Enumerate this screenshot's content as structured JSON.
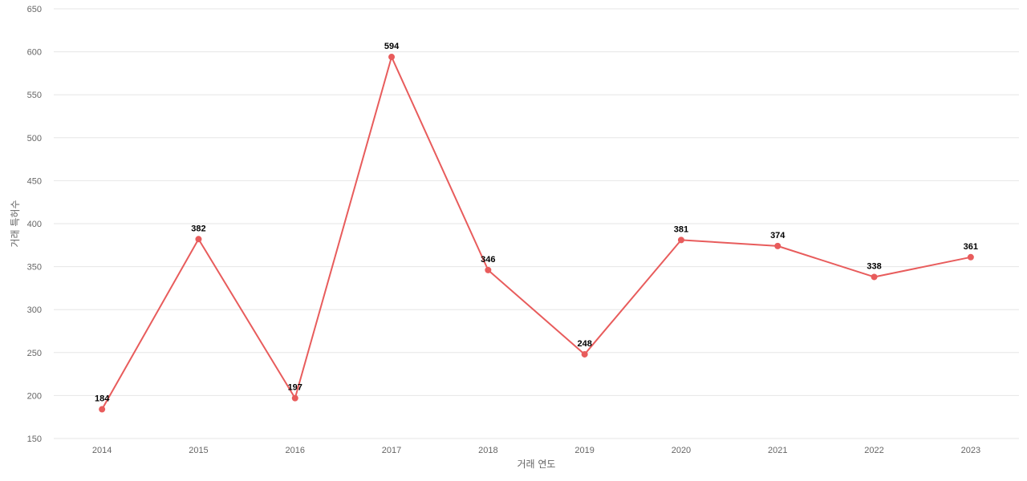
{
  "chart_data": {
    "type": "line",
    "title": "",
    "xlabel": "거래 연도",
    "ylabel": "거래 특허수",
    "categories": [
      "2014",
      "2015",
      "2016",
      "2017",
      "2018",
      "2019",
      "2020",
      "2021",
      "2022",
      "2023"
    ],
    "series": [
      {
        "values": [
          184,
          382,
          197,
          594,
          346,
          248,
          381,
          374,
          338,
          361
        ]
      }
    ],
    "ylim": [
      150,
      650
    ],
    "yticks": [
      150,
      200,
      250,
      300,
      350,
      400,
      450,
      500,
      550,
      600,
      650
    ],
    "grid": true,
    "legend": "none",
    "colors": {
      "line": "#e85c5c",
      "grid": "#e6e6e6",
      "tick_text": "#666666",
      "label_text": "#000000"
    }
  }
}
